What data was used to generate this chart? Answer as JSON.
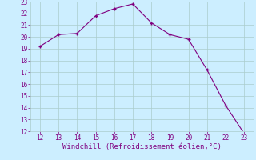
{
  "x": [
    12,
    13,
    14,
    15,
    16,
    17,
    18,
    19,
    20,
    21,
    22,
    23
  ],
  "y": [
    19.2,
    20.2,
    20.3,
    21.8,
    22.4,
    22.8,
    21.2,
    20.2,
    19.8,
    17.2,
    14.2,
    11.8
  ],
  "xlim": [
    11.5,
    23.5
  ],
  "ylim": [
    12,
    23
  ],
  "xticks": [
    12,
    13,
    14,
    15,
    16,
    17,
    18,
    19,
    20,
    21,
    22,
    23
  ],
  "yticks": [
    12,
    13,
    14,
    15,
    16,
    17,
    18,
    19,
    20,
    21,
    22,
    23
  ],
  "xlabel": "Windchill (Refroidissement éolien,°C)",
  "line_color": "#800080",
  "marker_color": "#800080",
  "bg_color": "#cceeff",
  "grid_color": "#aacccc",
  "tick_fontsize": 5.5,
  "label_fontsize": 6.5
}
